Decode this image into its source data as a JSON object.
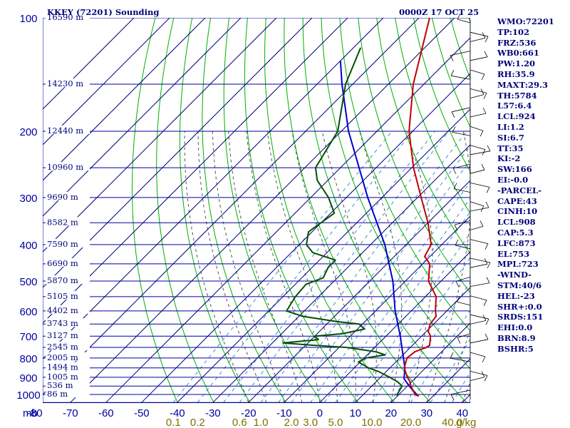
{
  "header": {
    "station": "KKEY (72201) Sounding",
    "time": "0000Z 17 OCT 25"
  },
  "indices": [
    "WMO:72201",
    "TP:102",
    "FRZ:536",
    "WB0:661",
    "PW:1.20",
    "RH:35.9",
    "MAXT:29.3",
    "TH:5784",
    "L57:6.4",
    "LCL:924",
    "LI:1.2",
    "SI:6.7",
    "TT:35",
    "KI:-2",
    "SW:166",
    "EI:-0.0",
    "-PARCEL-",
    "CAPE:43",
    "CINH:10",
    "LCL:908",
    "CAP:5.3",
    "LFC:873",
    "EL:753",
    "MPL:723",
    "-WIND-",
    "STM:40/6",
    "HEL:-23",
    "SHR+:0.0",
    "SRDS:151",
    "EHI:0.0",
    "BRN:8.9",
    "BSHR:5"
  ],
  "colors": {
    "grid": "#0000a0",
    "isotherm": "#00007a",
    "dry_adiabat": "#00b000",
    "moist_adiabat": "#555555",
    "mixing_ratio": "#3a8fd0",
    "temperature": "#c00000",
    "dewpoint": "#005000",
    "parcel": "#0000cc",
    "text": "#00007a",
    "mixing_label": "#807000"
  },
  "chart_data": {
    "type": "skew-t",
    "title": "KKEY (72201) Sounding",
    "pressure_levels": [
      100,
      200,
      300,
      400,
      500,
      600,
      700,
      800,
      900,
      1000
    ],
    "pressure_unit_label": "mb",
    "temperature_ticks": [
      -80,
      -70,
      -60,
      -50,
      -40,
      -30,
      -20,
      -10,
      0,
      10,
      20,
      30,
      40
    ],
    "temperature_tick_labels": [
      "-80",
      "-70",
      "-60",
      "-50",
      "-40",
      "-30",
      "-20",
      "-10",
      "0",
      "10",
      "20",
      "30",
      "40"
    ],
    "mixing_ratio_labels": [
      {
        "w": 0.1,
        "label": "0.1"
      },
      {
        "w": 0.2,
        "label": "0.2"
      },
      {
        "w": 0.6,
        "label": "0.6"
      },
      {
        "w": 1.0,
        "label": "1.0"
      },
      {
        "w": 2.0,
        "label": "2.0"
      },
      {
        "w": 3.0,
        "label": "3.0"
      },
      {
        "w": 5.0,
        "label": "5.0"
      },
      {
        "w": 10.0,
        "label": "10.0"
      },
      {
        "w": 20.0,
        "label": "20.0"
      },
      {
        "w": 40.0,
        "label": "40.0"
      }
    ],
    "mixing_ratio_unit": "g/kg",
    "height_labels": [
      {
        "p": 100,
        "label": "16590 m"
      },
      {
        "p": 150,
        "label": "14230 m"
      },
      {
        "p": 200,
        "label": "12440 m"
      },
      {
        "p": 250,
        "label": "10960 m"
      },
      {
        "p": 300,
        "label": "9690 m"
      },
      {
        "p": 350,
        "label": "8582 m"
      },
      {
        "p": 400,
        "label": "7590 m"
      },
      {
        "p": 450,
        "label": "6690 m"
      },
      {
        "p": 500,
        "label": "5870 m"
      },
      {
        "p": 550,
        "label": "5105 m"
      },
      {
        "p": 600,
        "label": "4402 m"
      },
      {
        "p": 650,
        "label": "3743 m"
      },
      {
        "p": 700,
        "label": "3127 m"
      },
      {
        "p": 750,
        "label": "2545 m"
      },
      {
        "p": 800,
        "label": "2005 m"
      },
      {
        "p": 850,
        "label": "1494 m"
      },
      {
        "p": 900,
        "label": "1005 m"
      },
      {
        "p": 950,
        "label": "536 m"
      },
      {
        "p": 1000,
        "label": "86 m"
      }
    ],
    "temperature_profile": [
      {
        "p": 1010,
        "t": 26.0
      },
      {
        "p": 1000,
        "t": 24.5
      },
      {
        "p": 950,
        "t": 21.0
      },
      {
        "p": 925,
        "t": 19.5
      },
      {
        "p": 900,
        "t": 17.5
      },
      {
        "p": 850,
        "t": 14.0
      },
      {
        "p": 800,
        "t": 12.0
      },
      {
        "p": 770,
        "t": 12.5
      },
      {
        "p": 750,
        "t": 14.5
      },
      {
        "p": 740,
        "t": 14.8
      },
      {
        "p": 700,
        "t": 12.5
      },
      {
        "p": 680,
        "t": 10.5
      },
      {
        "p": 650,
        "t": 9.0
      },
      {
        "p": 620,
        "t": 8.5
      },
      {
        "p": 600,
        "t": 6.8
      },
      {
        "p": 550,
        "t": 3.0
      },
      {
        "p": 500,
        "t": -3.5
      },
      {
        "p": 450,
        "t": -8.0
      },
      {
        "p": 430,
        "t": -11.5
      },
      {
        "p": 400,
        "t": -13.0
      },
      {
        "p": 350,
        "t": -20.0
      },
      {
        "p": 300,
        "t": -29.0
      },
      {
        "p": 250,
        "t": -39.5
      },
      {
        "p": 200,
        "t": -51.0
      },
      {
        "p": 150,
        "t": -63.0
      },
      {
        "p": 100,
        "t": -77.0
      }
    ],
    "dewpoint_profile": [
      {
        "p": 1010,
        "t": 20.0
      },
      {
        "p": 1000,
        "t": 19.5
      },
      {
        "p": 950,
        "t": 18.5
      },
      {
        "p": 925,
        "t": 16.0
      },
      {
        "p": 900,
        "t": 12.5
      },
      {
        "p": 870,
        "t": 8.0
      },
      {
        "p": 850,
        "t": 4.0
      },
      {
        "p": 820,
        "t": -0.5
      },
      {
        "p": 800,
        "t": 0.5
      },
      {
        "p": 785,
        "t": 5.0
      },
      {
        "p": 770,
        "t": 1.5
      },
      {
        "p": 750,
        "t": -8.0
      },
      {
        "p": 740,
        "t": -18.0
      },
      {
        "p": 730,
        "t": -27.0
      },
      {
        "p": 715,
        "t": -18.0
      },
      {
        "p": 700,
        "t": -20.0
      },
      {
        "p": 690,
        "t": -13.0
      },
      {
        "p": 670,
        "t": -8.0
      },
      {
        "p": 650,
        "t": -11.0
      },
      {
        "p": 640,
        "t": -18.0
      },
      {
        "p": 620,
        "t": -29.0
      },
      {
        "p": 600,
        "t": -35.0
      },
      {
        "p": 550,
        "t": -36.5
      },
      {
        "p": 510,
        "t": -37.0
      },
      {
        "p": 490,
        "t": -34.0
      },
      {
        "p": 460,
        "t": -35.5
      },
      {
        "p": 440,
        "t": -35.5
      },
      {
        "p": 420,
        "t": -44.0
      },
      {
        "p": 400,
        "t": -48.0
      },
      {
        "p": 370,
        "t": -51.0
      },
      {
        "p": 330,
        "t": -49.0
      },
      {
        "p": 300,
        "t": -55.0
      },
      {
        "p": 270,
        "t": -63.0
      },
      {
        "p": 250,
        "t": -67.0
      },
      {
        "p": 200,
        "t": -71.0
      },
      {
        "p": 150,
        "t": -82.0
      },
      {
        "p": 120,
        "t": -88.0
      }
    ],
    "parcel_profile": [
      {
        "p": 1010,
        "t": 26.0
      },
      {
        "p": 1000,
        "t": 25.0
      },
      {
        "p": 950,
        "t": 20.5
      },
      {
        "p": 908,
        "t": 17.0
      },
      {
        "p": 850,
        "t": 14.2
      },
      {
        "p": 800,
        "t": 11.0
      },
      {
        "p": 700,
        "t": 4.0
      },
      {
        "p": 600,
        "t": -4.5
      },
      {
        "p": 500,
        "t": -13.5
      },
      {
        "p": 400,
        "t": -26.0
      },
      {
        "p": 300,
        "t": -44.0
      },
      {
        "p": 200,
        "t": -68.0
      },
      {
        "p": 150,
        "t": -83.0
      },
      {
        "p": 130,
        "t": -90.0
      }
    ],
    "xlabel": "",
    "ylabel": "mb",
    "ylim": [
      100,
      1050
    ],
    "xlim": [
      -80,
      40
    ],
    "grid": true
  }
}
